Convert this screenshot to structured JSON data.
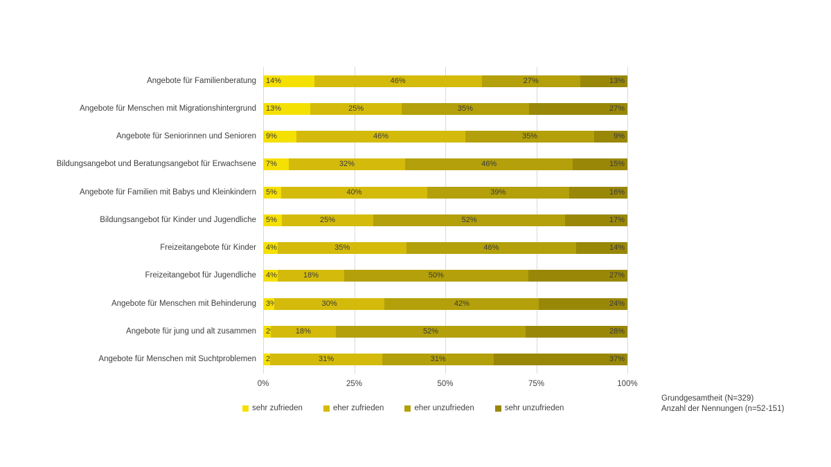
{
  "chart_data": {
    "type": "bar",
    "orientation": "horizontal",
    "stacked": true,
    "unit": "%",
    "title": "",
    "categories": [
      "Angebote für Familienberatung",
      "Angebote für Menschen mit Migrationshintergrund",
      "Angebote für Seniorinnen und Senioren",
      "Bildungsangebot und Beratungsangebot für Erwachsene",
      "Angebote für Familien mit Babys und Kleinkindern",
      "Bildungsangebot für Kinder und Jugendliche",
      "Freizeitangebote für Kinder",
      "Freizeitangebot für Jugendliche",
      "Angebote für Menschen mit Behinderung",
      "Angebote für jung und alt zusammen",
      "Angebote für Menschen mit Suchtproblemen"
    ],
    "series": [
      {
        "name": "sehr zufrieden",
        "color": "#f5e004",
        "values": [
          14,
          13,
          9,
          7,
          5,
          5,
          4,
          4,
          3,
          2,
          2
        ]
      },
      {
        "name": "eher zufrieden",
        "color": "#d4bb0b",
        "values": [
          46,
          25,
          46,
          32,
          40,
          25,
          35,
          18,
          30,
          18,
          31
        ]
      },
      {
        "name": "eher unzufrieden",
        "color": "#b3a00a",
        "values": [
          27,
          35,
          35,
          46,
          39,
          52,
          46,
          50,
          42,
          52,
          31
        ]
      },
      {
        "name": "sehr unzufrieden",
        "color": "#998708",
        "values": [
          13,
          27,
          9,
          15,
          16,
          17,
          14,
          27,
          24,
          28,
          37
        ]
      }
    ],
    "x_ticks": [
      "0%",
      "25%",
      "50%",
      "75%",
      "100%"
    ],
    "xlim": [
      0,
      100
    ],
    "gridlines": true,
    "legend_position": "bottom"
  },
  "footnote": {
    "line1": "Grundgesamtheit (N=329)",
    "line2": "Anzahl der Nennungen (n=52-151)"
  },
  "style": {
    "gridline_color": "#d9d9d9",
    "label_color": "#3d3d3d"
  }
}
